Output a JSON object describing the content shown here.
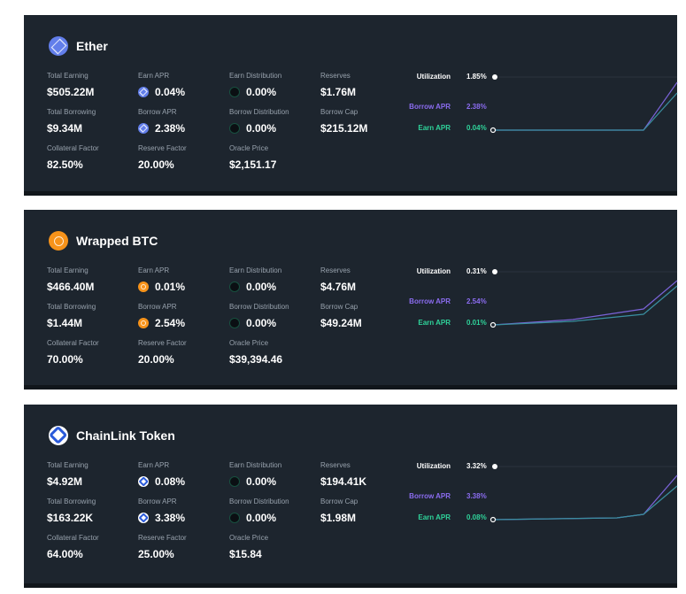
{
  "cards": [
    {
      "name": "Ether",
      "stats": [
        [
          {
            "label": "Total Earning",
            "value": "$505.22M"
          },
          {
            "label": "Earn APR",
            "value": "0.04%"
          },
          {
            "label": "Earn Distribution",
            "value": "0.00%"
          },
          {
            "label": "Reserves",
            "value": "$1.76M"
          }
        ],
        [
          {
            "label": "Total Borrowing",
            "value": "$9.34M"
          },
          {
            "label": "Borrow APR",
            "value": "2.38%"
          },
          {
            "label": "Borrow Distribution",
            "value": "0.00%"
          },
          {
            "label": "Borrow Cap",
            "value": "$215.12M"
          }
        ],
        [
          {
            "label": "Collateral Factor",
            "value": "82.50%"
          },
          {
            "label": "Reserve Factor",
            "value": "20.00%"
          },
          {
            "label": "Oracle Price",
            "value": "$2,151.17"
          }
        ]
      ],
      "utilization": {
        "label": "Utilization",
        "value": "1.85%"
      },
      "borrow_apr": {
        "label": "Borrow APR",
        "value": "2.38%"
      },
      "earn_apr": {
        "label": "Earn APR",
        "value": "0.04%"
      }
    },
    {
      "name": "Wrapped BTC",
      "stats": [
        [
          {
            "label": "Total Earning",
            "value": "$466.40M"
          },
          {
            "label": "Earn APR",
            "value": "0.01%"
          },
          {
            "label": "Earn Distribution",
            "value": "0.00%"
          },
          {
            "label": "Reserves",
            "value": "$4.76M"
          }
        ],
        [
          {
            "label": "Total Borrowing",
            "value": "$1.44M"
          },
          {
            "label": "Borrow APR",
            "value": "2.54%"
          },
          {
            "label": "Borrow Distribution",
            "value": "0.00%"
          },
          {
            "label": "Borrow Cap",
            "value": "$49.24M"
          }
        ],
        [
          {
            "label": "Collateral Factor",
            "value": "70.00%"
          },
          {
            "label": "Reserve Factor",
            "value": "20.00%"
          },
          {
            "label": "Oracle Price",
            "value": "$39,394.46"
          }
        ]
      ],
      "utilization": {
        "label": "Utilization",
        "value": "0.31%"
      },
      "borrow_apr": {
        "label": "Borrow APR",
        "value": "2.54%"
      },
      "earn_apr": {
        "label": "Earn APR",
        "value": "0.01%"
      }
    },
    {
      "name": "ChainLink Token",
      "stats": [
        [
          {
            "label": "Total Earning",
            "value": "$4.92M"
          },
          {
            "label": "Earn APR",
            "value": "0.08%"
          },
          {
            "label": "Earn Distribution",
            "value": "0.00%"
          },
          {
            "label": "Reserves",
            "value": "$194.41K"
          }
        ],
        [
          {
            "label": "Total Borrowing",
            "value": "$163.22K"
          },
          {
            "label": "Borrow APR",
            "value": "3.38%"
          },
          {
            "label": "Borrow Distribution",
            "value": "0.00%"
          },
          {
            "label": "Borrow Cap",
            "value": "$1.98M"
          }
        ],
        [
          {
            "label": "Collateral Factor",
            "value": "64.00%"
          },
          {
            "label": "Reserve Factor",
            "value": "25.00%"
          },
          {
            "label": "Oracle Price",
            "value": "$15.84"
          }
        ]
      ],
      "utilization": {
        "label": "Utilization",
        "value": "3.32%"
      },
      "borrow_apr": {
        "label": "Borrow APR",
        "value": "3.38%"
      },
      "earn_apr": {
        "label": "Earn APR",
        "value": "0.08%"
      }
    }
  ]
}
